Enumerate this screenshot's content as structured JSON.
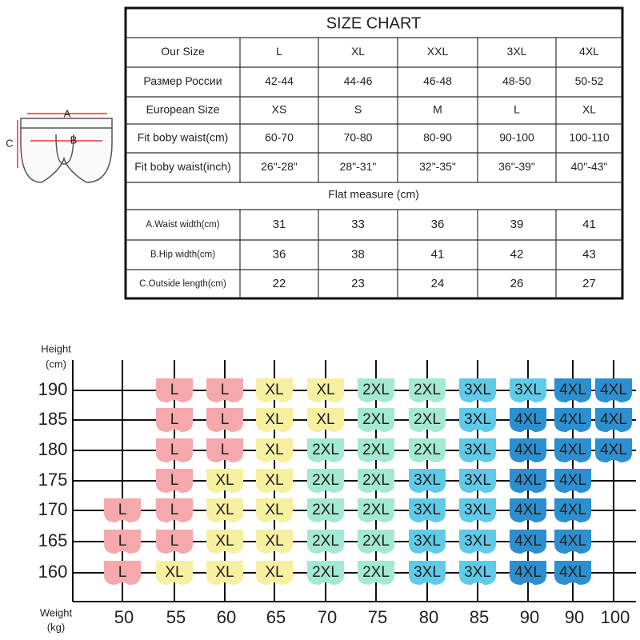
{
  "size_chart": {
    "title": "SIZE CHART",
    "rows": [
      [
        "Our Size",
        "L",
        "XL",
        "XXL",
        "3XL",
        "4XL"
      ],
      [
        "Размер России",
        "42-44",
        "44-46",
        "46-48",
        "48-50",
        "50-52"
      ],
      [
        "European Size",
        "XS",
        "S",
        "M",
        "L",
        "XL"
      ],
      [
        "Fit boby waist(cm)",
        "60-70",
        "70-80",
        "80-90",
        "90-100",
        "100-110"
      ],
      [
        "Fit boby waist(inch)",
        "26\"-28\"",
        "28\"-31\"",
        "32\"-35\"",
        "36\"-39\"",
        "40\"-43\""
      ]
    ],
    "section": "Flat measure (cm)",
    "measure_rows": [
      [
        "A.Waist width(cm)",
        31,
        33,
        36,
        39,
        41
      ],
      [
        "B.Hip width(cm)",
        36,
        38,
        41,
        42,
        43
      ],
      [
        "C.Outside length(cm)",
        22,
        23,
        24,
        26,
        27
      ]
    ]
  },
  "diagram": {
    "labels": [
      "A",
      "B",
      "C"
    ]
  },
  "grid": {
    "y_label": [
      "Height",
      "(cm)"
    ],
    "x_label": [
      "Weight",
      "(kg)"
    ],
    "heights": [
      190,
      185,
      180,
      175,
      170,
      165,
      160
    ],
    "weights": [
      50,
      55,
      60,
      65,
      70,
      75,
      80,
      85,
      90,
      90,
      100
    ],
    "colors": {
      "L": "#f5a9ac",
      "XL": "#f6f0a0",
      "2XL": "#a3ead0",
      "3XL": "#5fcbe8",
      "4XL": "#2c8fd0"
    },
    "rows": [
      [
        null,
        "L",
        "L",
        "XL",
        "XL",
        "2XL",
        "2XL",
        "3XL",
        "3XL",
        "4XL",
        "4XL"
      ],
      [
        null,
        "L",
        "L",
        "XL",
        "XL",
        "2XL",
        "2XL",
        "3XL",
        "4XL",
        "4XL",
        "4XL"
      ],
      [
        null,
        "L",
        "L",
        "XL",
        "2XL",
        "2XL",
        "2XL",
        "3XL",
        "4XL",
        "4XL",
        "4XL"
      ],
      [
        null,
        "L",
        "XL",
        "XL",
        "2XL",
        "2XL",
        "3XL",
        "3XL",
        "4XL",
        "4XL",
        null
      ],
      [
        "L",
        "L",
        "XL",
        "XL",
        "2XL",
        "2XL",
        "3XL",
        "3XL",
        "4XL",
        "4XL",
        null
      ],
      [
        "L",
        "L",
        "XL",
        "XL",
        "2XL",
        "2XL",
        "3XL",
        "3XL",
        "4XL",
        "4XL",
        null
      ],
      [
        "L",
        "XL",
        "XL",
        "XL",
        "2XL",
        "2XL",
        "3XL",
        "3XL",
        "4XL",
        "4XL",
        null
      ]
    ]
  }
}
